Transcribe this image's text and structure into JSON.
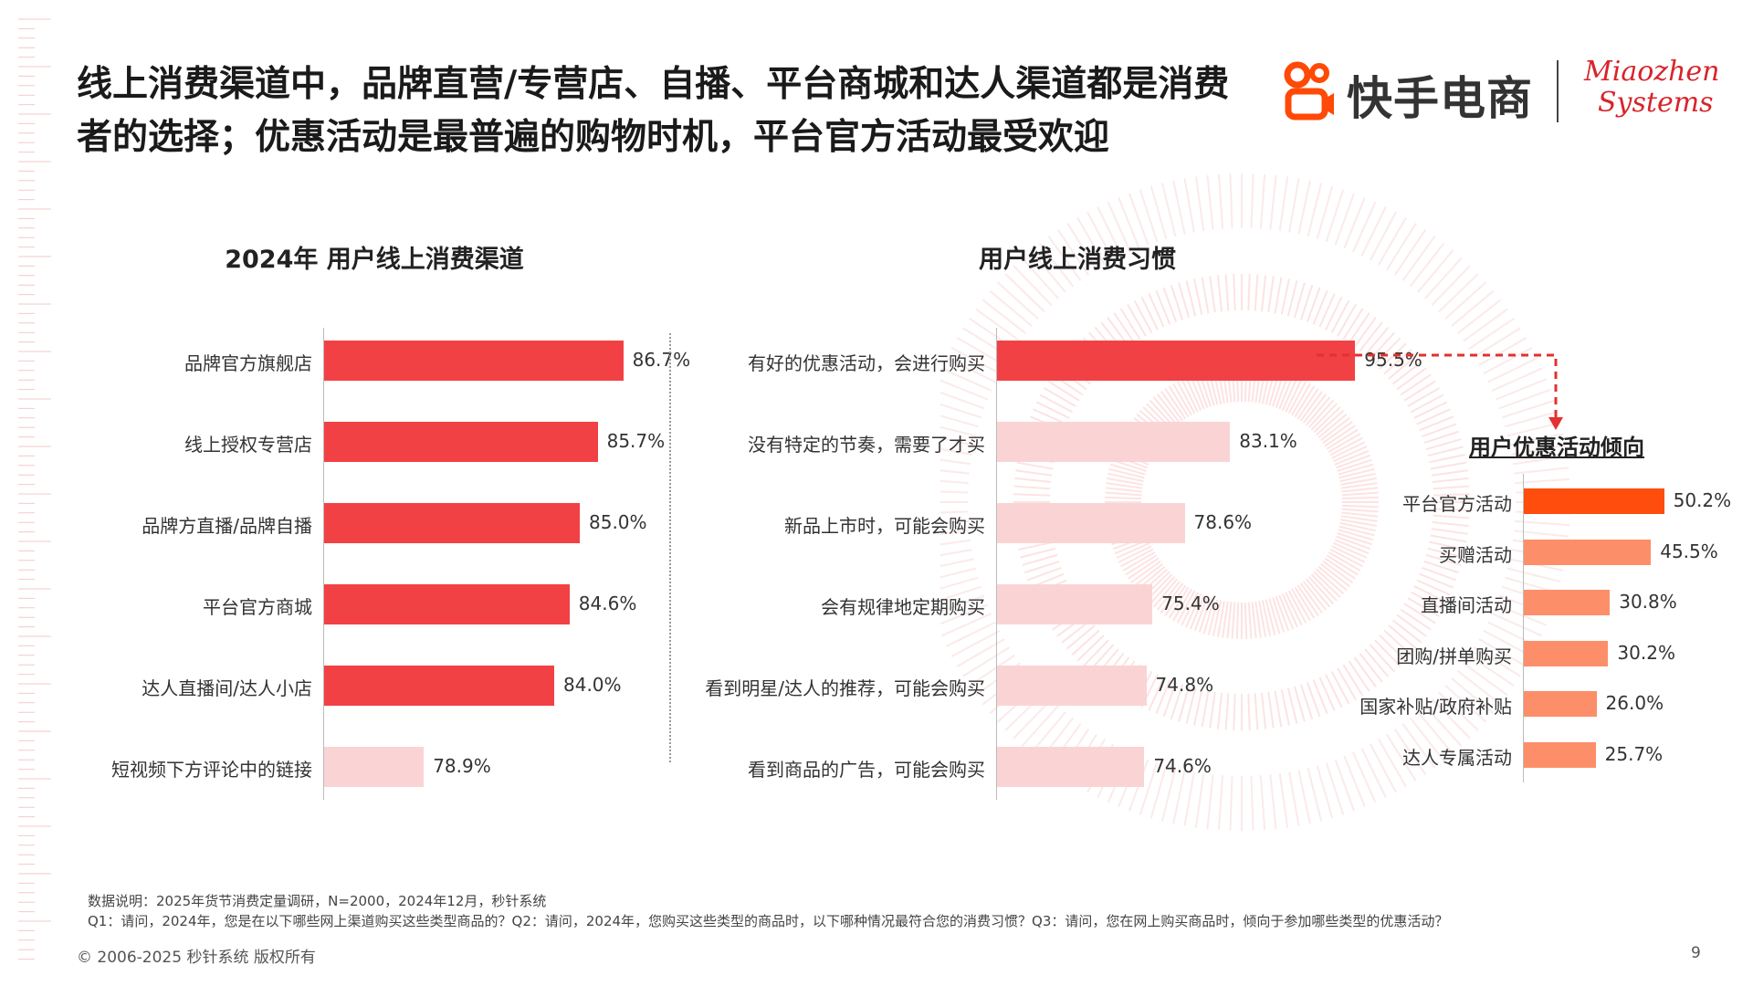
{
  "title_line1": "线上消费渠道中，品牌直营/专营店、自播、平台商城和达人渠道都是消费",
  "title_line2": "者的选择；优惠活动是最普遍的购物时机，平台官方活动最受欢迎",
  "logo": {
    "name": "快手电商",
    "partner_line1": "Miaozhen",
    "partner_line2": "Systems"
  },
  "colors": {
    "primary_red": "#f24144",
    "light_pink": "#fad4d4",
    "deep_orange": "#ff4d0d",
    "salmon": "#fc8f6a",
    "arrow_red": "#e33030"
  },
  "chart_data": [
    {
      "type": "bar",
      "orientation": "horizontal",
      "title": "2024年 用户线上消费渠道",
      "categories": [
        "品牌官方旗舰店",
        "线上授权专营店",
        "品牌方直播/品牌自播",
        "平台官方商城",
        "达人直播间/达人小店",
        "短视频下方评论中的链接"
      ],
      "values": [
        86.7,
        85.7,
        85.0,
        84.6,
        84.0,
        78.9
      ],
      "value_labels": [
        "86.7%",
        "85.7%",
        "85.0%",
        "84.6%",
        "84.0%",
        "78.9%"
      ],
      "highlight": [
        true,
        true,
        true,
        true,
        true,
        false
      ],
      "xlim": [
        75,
        90
      ]
    },
    {
      "type": "bar",
      "orientation": "horizontal",
      "title": "用户线上消费习惯",
      "categories": [
        "有好的优惠活动，会进行购买",
        "没有特定的节奏，需要了才买",
        "新品上市时，可能会购买",
        "会有规律地定期购买",
        "看到明星/达人的推荐，可能会购买",
        "看到商品的广告，可能会购买"
      ],
      "values": [
        95.5,
        83.1,
        78.6,
        75.4,
        74.8,
        74.6
      ],
      "value_labels": [
        "95.5%",
        "83.1%",
        "78.6%",
        "75.4%",
        "74.8%",
        "74.6%"
      ],
      "highlight": [
        true,
        false,
        false,
        false,
        false,
        false
      ],
      "xlim": [
        60,
        100
      ]
    },
    {
      "type": "bar",
      "orientation": "horizontal",
      "title": "用户优惠活动倾向",
      "categories": [
        "平台官方活动",
        "买赠活动",
        "直播间活动",
        "团购/拼单购买",
        "国家补贴/政府补贴",
        "达人专属活动"
      ],
      "values": [
        50.2,
        45.5,
        30.8,
        30.2,
        26.0,
        25.7
      ],
      "value_labels": [
        "50.2%",
        "45.5%",
        "30.8%",
        "30.2%",
        "26.0%",
        "25.7%"
      ],
      "highlight": [
        true,
        false,
        false,
        false,
        false,
        false
      ],
      "xlim": [
        0,
        50
      ]
    }
  ],
  "footnote_source": "数据说明：2025年货节消费定量调研，N=2000，2024年12月，秒针系统",
  "footnote_questions": "Q1：请问，2024年，您是在以下哪些网上渠道购买这些类型商品的？Q2：请问，2024年，您购买这些类型的商品时，以下哪种情况最符合您的消费习惯？Q3：请问，您在网上购买商品时，倾向于参加哪些类型的优惠活动？",
  "copyright": "© 2006-2025 秒针系统 版权所有",
  "page_number": "9"
}
